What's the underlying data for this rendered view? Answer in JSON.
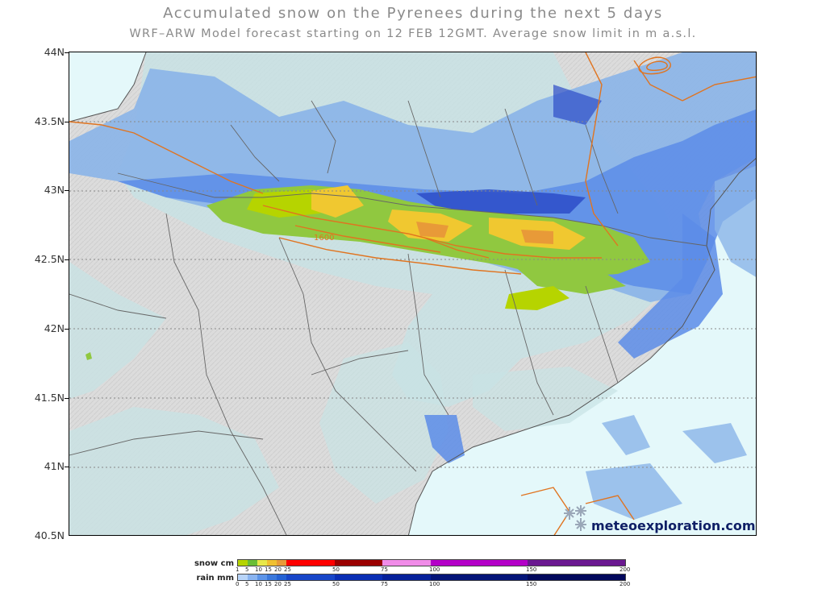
{
  "title": "Accumulated snow on the Pyrenees during the next 5 days",
  "subtitle": "WRF–ARW Model forecast starting on 12 FEB 12GMT.  Average snow limit in m a.s.l.",
  "latitude_labels": [
    "44N",
    "43.5N",
    "43N",
    "42.5N",
    "42N",
    "41.5N",
    "41N",
    "40.5N"
  ],
  "contour_label": "1600",
  "brand": "meteoexploration.com",
  "legend": {
    "snow": {
      "label": "snow cm",
      "ticks": [
        "1",
        "5",
        "10",
        "15",
        "20",
        "25",
        "50",
        "75",
        "100",
        "150",
        "200"
      ],
      "colors": [
        "#b6d400",
        "#6abe36",
        "#e8e84a",
        "#f0c030",
        "#e89a38",
        "#ff0000",
        "#9a0000",
        "#f08ce8",
        "#b400c8",
        "#6a1890"
      ]
    },
    "rain": {
      "label": "rain mm",
      "ticks": [
        "0",
        "5",
        "10",
        "15",
        "20",
        "25",
        "50",
        "75",
        "100",
        "150",
        "200"
      ],
      "colors": [
        "#b8d4f8",
        "#8ab4f0",
        "#5c94e8",
        "#3a78dc",
        "#2462d4",
        "#1846c8",
        "#0a2eb4",
        "#06209a",
        "#041478",
        "#02085c"
      ]
    }
  },
  "colors": {
    "land": "#dcdcdc",
    "sea": "#e4f8fa",
    "rain_light": "#c4e0e2",
    "rain_blue": "#5c8ce8",
    "rain_dark": "#2c4cc8",
    "snow_green": "#90c840",
    "snow_yellow": "#f0c830",
    "contour": "#e07420",
    "borders": "#555555"
  }
}
